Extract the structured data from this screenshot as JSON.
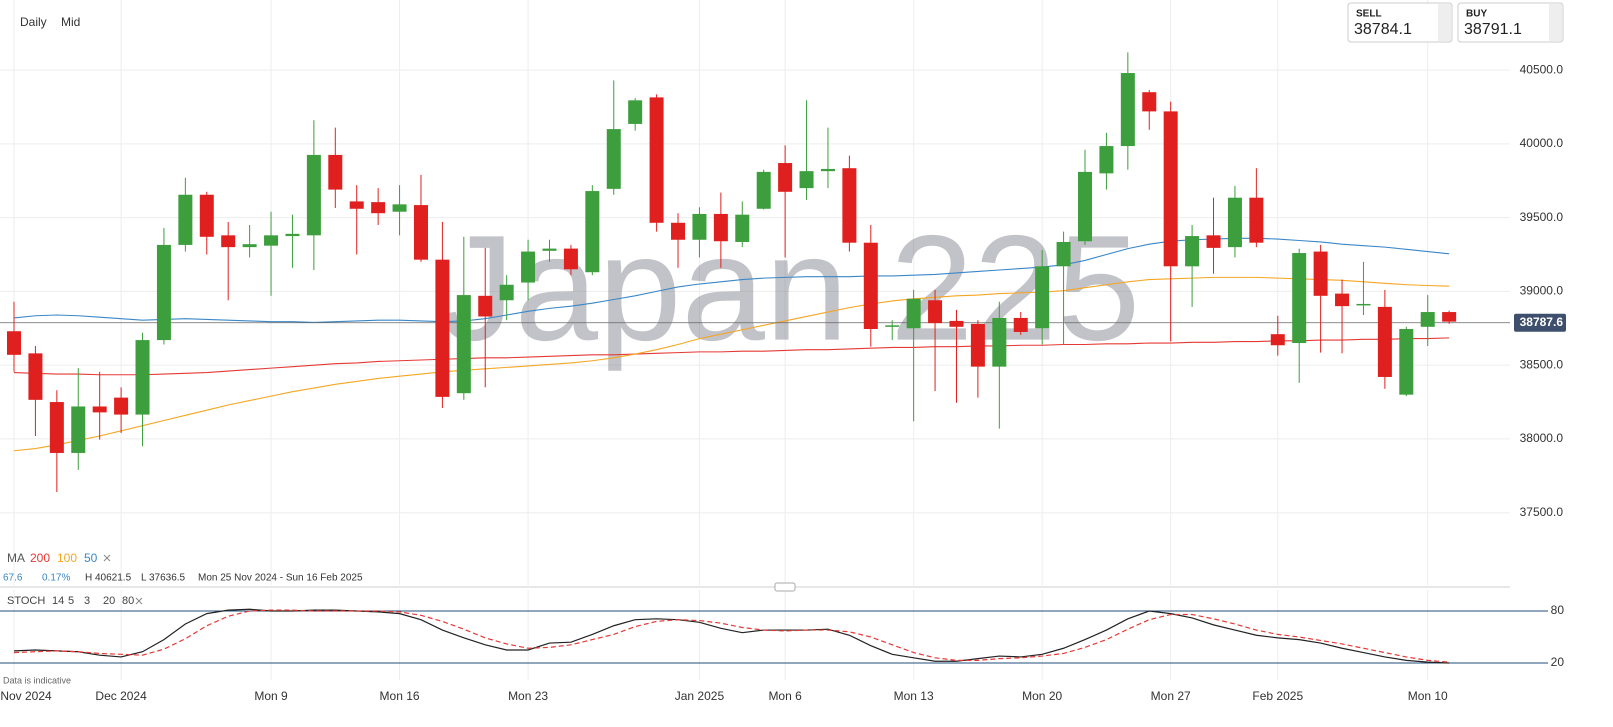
{
  "header": {
    "interval": "Daily",
    "price_type": "Mid",
    "sell_label": "SELL",
    "sell": 38784.1,
    "buy_label": "BUY",
    "buy": 38791.1
  },
  "watermark": "Japan 225",
  "footer_note": "Data is indicative",
  "chart_data": [
    {
      "type": "candlestick",
      "categories": [
        "Nov 2024",
        null,
        null,
        null,
        null,
        "Dec 2024",
        null,
        null,
        null,
        null,
        null,
        null,
        "Mon 9",
        null,
        null,
        null,
        null,
        null,
        "Mon 16",
        null,
        null,
        null,
        null,
        null,
        "Mon 23",
        null,
        null,
        null,
        null,
        null,
        null,
        null,
        "Jan 2025",
        null,
        null,
        null,
        "Mon 6",
        null,
        null,
        null,
        null,
        null,
        "Mon 13",
        null,
        null,
        null,
        null,
        null,
        "Mon 20",
        null,
        null,
        null,
        null,
        null,
        "Mon 27",
        null,
        null,
        null,
        null,
        "Feb 2025",
        null,
        null,
        null,
        null,
        null,
        null,
        "Mon 10",
        null
      ],
      "open": [
        38730,
        38580,
        38250,
        37905,
        38220,
        38280,
        38165,
        38670,
        39315,
        39655,
        39380,
        39300,
        39310,
        39375,
        39380,
        39925,
        39610,
        39605,
        39540,
        39585,
        39215,
        38310,
        38970,
        38940,
        39060,
        39275,
        39290,
        39130,
        39695,
        40135,
        40315,
        39465,
        39350,
        39525,
        39335,
        39560,
        39870,
        39700,
        39815,
        39835,
        39330,
        38760,
        38750,
        38940,
        38800,
        38780,
        38490,
        38820,
        38750,
        39170,
        39340,
        39800,
        39985,
        40350,
        40220,
        39170,
        39380,
        39300,
        39635,
        38710,
        38650,
        39270,
        38985,
        38910,
        38895,
        38300,
        38760,
        38860
      ],
      "high": [
        38930,
        38630,
        38330,
        38480,
        38455,
        38350,
        38720,
        39430,
        39770,
        39675,
        39470,
        39450,
        39540,
        39520,
        40160,
        40110,
        39720,
        39700,
        39720,
        39790,
        39470,
        39370,
        39295,
        39110,
        39350,
        39350,
        39315,
        39720,
        40430,
        40310,
        40335,
        39530,
        39570,
        39670,
        39610,
        39825,
        39990,
        40295,
        40110,
        39920,
        39450,
        38805,
        39010,
        39010,
        38875,
        38805,
        38930,
        38860,
        39280,
        39405,
        39960,
        40075,
        40620,
        40365,
        40285,
        39450,
        39635,
        39715,
        39835,
        38835,
        39290,
        39315,
        39080,
        39200,
        39010,
        38760,
        38975,
        38870
      ],
      "low": [
        38455,
        38020,
        37640,
        37790,
        37995,
        38040,
        37950,
        38640,
        39270,
        39250,
        38940,
        39230,
        38970,
        39160,
        39145,
        39565,
        39250,
        39450,
        39380,
        39200,
        38210,
        38265,
        38350,
        38805,
        38940,
        39200,
        39110,
        39110,
        39655,
        40090,
        39405,
        39160,
        39230,
        39160,
        39300,
        39555,
        39230,
        39620,
        39700,
        39270,
        38625,
        38670,
        38120,
        38325,
        38245,
        38280,
        38070,
        38705,
        38640,
        38640,
        39315,
        39690,
        39825,
        40095,
        38660,
        38895,
        39120,
        39230,
        39300,
        38565,
        38380,
        38585,
        38580,
        38840,
        38340,
        38290,
        38630,
        38780
      ],
      "close": [
        38570,
        38265,
        37905,
        38220,
        38180,
        38165,
        38670,
        39315,
        39655,
        39370,
        39300,
        39320,
        39380,
        39390,
        39925,
        39690,
        39560,
        39530,
        39590,
        39215,
        38285,
        38975,
        38830,
        39045,
        39270,
        39290,
        39150,
        39680,
        40100,
        40295,
        39465,
        39350,
        39525,
        39340,
        39520,
        39810,
        39675,
        39815,
        39830,
        39330,
        38745,
        38770,
        38950,
        38785,
        38760,
        38490,
        38820,
        38725,
        39170,
        39335,
        39810,
        39985,
        40480,
        40220,
        39170,
        39375,
        39295,
        39635,
        39330,
        38635,
        39260,
        38970,
        38900,
        38915,
        38420,
        38745,
        38860,
        38795
      ],
      "up_color": "#3c9e3c",
      "down_color": "#e0201f",
      "legend_title": "MA",
      "series": [
        {
          "name": "200",
          "color": "#e53935",
          "values": [
            38450,
            38445,
            38440,
            38440,
            38435,
            38435,
            38435,
            38440,
            38445,
            38450,
            38460,
            38470,
            38480,
            38490,
            38500,
            38510,
            38515,
            38525,
            38530,
            38535,
            38540,
            38545,
            38550,
            38550,
            38555,
            38560,
            38565,
            38570,
            38570,
            38575,
            38580,
            38585,
            38590,
            38590,
            38595,
            38595,
            38600,
            38605,
            38605,
            38610,
            38615,
            38620,
            38620,
            38625,
            38625,
            38630,
            38630,
            38635,
            38635,
            38640,
            38640,
            38645,
            38645,
            38650,
            38650,
            38655,
            38655,
            38660,
            38660,
            38665,
            38665,
            38670,
            38670,
            38675,
            38675,
            38680,
            38680,
            38685
          ]
        },
        {
          "name": "100",
          "color": "#f5a623",
          "values": [
            37920,
            37935,
            37960,
            37990,
            38020,
            38055,
            38090,
            38125,
            38160,
            38195,
            38230,
            38260,
            38290,
            38320,
            38345,
            38370,
            38390,
            38410,
            38425,
            38440,
            38455,
            38465,
            38475,
            38485,
            38495,
            38505,
            38515,
            38530,
            38550,
            38575,
            38605,
            38640,
            38680,
            38710,
            38740,
            38770,
            38800,
            38830,
            38860,
            38890,
            38915,
            38935,
            38950,
            38960,
            38970,
            38975,
            38985,
            38990,
            38995,
            39005,
            39025,
            39045,
            39065,
            39080,
            39085,
            39090,
            39095,
            39095,
            39095,
            39090,
            39085,
            39080,
            39075,
            39065,
            39055,
            39045,
            39040,
            39035
          ]
        },
        {
          "name": "50",
          "color": "#3a87c8",
          "values": [
            38820,
            38835,
            38840,
            38835,
            38825,
            38815,
            38805,
            38810,
            38815,
            38810,
            38805,
            38800,
            38795,
            38795,
            38790,
            38795,
            38800,
            38805,
            38805,
            38800,
            38795,
            38800,
            38815,
            38840,
            38865,
            38885,
            38900,
            38920,
            38945,
            38970,
            39000,
            39030,
            39050,
            39065,
            39080,
            39090,
            39095,
            39100,
            39100,
            39100,
            39105,
            39105,
            39110,
            39115,
            39125,
            39135,
            39145,
            39155,
            39165,
            39180,
            39210,
            39250,
            39290,
            39320,
            39340,
            39350,
            39355,
            39360,
            39360,
            39355,
            39345,
            39335,
            39320,
            39310,
            39300,
            39285,
            39270,
            39255
          ]
        }
      ],
      "last_price": 38787.6,
      "summary": {
        "change": "67.6",
        "change_pct": "0.17%",
        "high": "H 40621.5",
        "low": "L 37636.5",
        "range": "Mon 25 Nov 2024 - Sun 16 Feb 2025"
      },
      "ylim": [
        37010,
        40975
      ],
      "yticks": [
        {
          "value": 37500,
          "label": "37500.0"
        },
        {
          "value": 38000,
          "label": "38000.0"
        },
        {
          "value": 38500,
          "label": "38500.0"
        },
        {
          "value": 39000,
          "label": "39000.0"
        },
        {
          "value": 39500,
          "label": "39500.0"
        },
        {
          "value": 40000,
          "label": "40000.0"
        },
        {
          "value": 40500,
          "label": "40500.0"
        }
      ],
      "grid": true
    },
    {
      "type": "line",
      "indicator": "STOCH",
      "params": [
        14,
        5,
        3,
        20,
        80
      ],
      "series": [
        {
          "color": "#222222",
          "dashed": false,
          "values": [
            34,
            35,
            34,
            33,
            29,
            27,
            33,
            47,
            65,
            77,
            81,
            82,
            80,
            80,
            81,
            81,
            80,
            79,
            77,
            70,
            58,
            49,
            41,
            35,
            35,
            43,
            44,
            53,
            63,
            70,
            71,
            70,
            67,
            60,
            55,
            58,
            58,
            58,
            59,
            52,
            40,
            30,
            26,
            22,
            22,
            25,
            28,
            27,
            30,
            37,
            47,
            58,
            71,
            80,
            77,
            72,
            64,
            58,
            52,
            49,
            47,
            43,
            37,
            32,
            27,
            23,
            21,
            20
          ]
        },
        {
          "color": "#e53935",
          "dashed": true,
          "values": [
            32,
            33,
            34,
            33,
            31,
            30,
            29,
            36,
            48,
            63,
            74,
            80,
            81,
            81,
            80,
            80,
            80,
            80,
            79,
            75,
            68,
            59,
            49,
            42,
            37,
            38,
            41,
            47,
            53,
            62,
            68,
            70,
            69,
            66,
            61,
            58,
            57,
            58,
            58,
            56,
            50,
            41,
            32,
            26,
            23,
            23,
            25,
            26,
            28,
            31,
            38,
            47,
            59,
            70,
            76,
            76,
            71,
            65,
            58,
            53,
            50,
            46,
            42,
            37,
            32,
            27,
            23,
            21
          ]
        }
      ],
      "ylim": [
        0,
        100
      ],
      "yticks": [
        20,
        80
      ],
      "line_color": "#1f4e79"
    }
  ]
}
